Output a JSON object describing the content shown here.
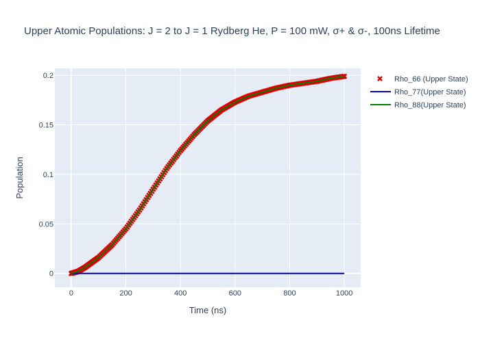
{
  "chart_data": {
    "type": "line",
    "title": "Upper Atomic Populations: J = 2 to J = 1 Rydberg He, P = 100 mW, σ+ & σ-, 100ns Lifetime",
    "xlabel": "Time (ns)",
    "ylabel": "Population",
    "xlim": [
      -60,
      1060
    ],
    "ylim": [
      -0.014,
      0.207
    ],
    "xticks": [
      0,
      200,
      400,
      600,
      800,
      1000
    ],
    "xtick_labels": [
      "0",
      "200",
      "400",
      "600",
      "800",
      "1000"
    ],
    "yticks": [
      0,
      0.05,
      0.1,
      0.15,
      0.2
    ],
    "ytick_labels": [
      "0",
      "0.05",
      "0.1",
      "0.15",
      "0.2"
    ],
    "grid": true,
    "legend_position": "top-right, outside plot",
    "series": [
      {
        "name": "Rho_66 (Upper State)",
        "mode": "markers",
        "marker": "x",
        "color": "#dd0000",
        "x": [
          0,
          25,
          50,
          75,
          100,
          150,
          200,
          250,
          300,
          350,
          400,
          450,
          500,
          550,
          600,
          650,
          700,
          750,
          800,
          850,
          900,
          950,
          1000
        ],
        "y": [
          0.0,
          0.002,
          0.006,
          0.011,
          0.016,
          0.029,
          0.045,
          0.064,
          0.085,
          0.106,
          0.124,
          0.14,
          0.154,
          0.165,
          0.173,
          0.179,
          0.183,
          0.187,
          0.19,
          0.192,
          0.194,
          0.197,
          0.199
        ]
      },
      {
        "name": "Rho_77(Upper State)",
        "mode": "lines",
        "color": "#0000cc",
        "x": [
          0,
          100,
          200,
          300,
          400,
          500,
          600,
          700,
          800,
          900,
          1000
        ],
        "y": [
          0,
          0,
          0,
          0,
          0,
          0,
          0,
          0,
          0,
          0,
          0
        ]
      },
      {
        "name": "Rho_88(Upper State)",
        "mode": "lines",
        "color": "#008000",
        "x": [
          0,
          25,
          50,
          75,
          100,
          150,
          200,
          250,
          300,
          350,
          400,
          450,
          500,
          550,
          600,
          650,
          700,
          750,
          800,
          850,
          900,
          950,
          1000
        ],
        "y": [
          0.0,
          0.002,
          0.006,
          0.011,
          0.016,
          0.029,
          0.045,
          0.064,
          0.085,
          0.106,
          0.124,
          0.14,
          0.154,
          0.165,
          0.173,
          0.179,
          0.183,
          0.187,
          0.19,
          0.192,
          0.194,
          0.197,
          0.199
        ]
      }
    ]
  },
  "colors": {
    "plot_background": "#e5ecf6",
    "grid": "#ffffff",
    "text": "#2a3f5f"
  }
}
